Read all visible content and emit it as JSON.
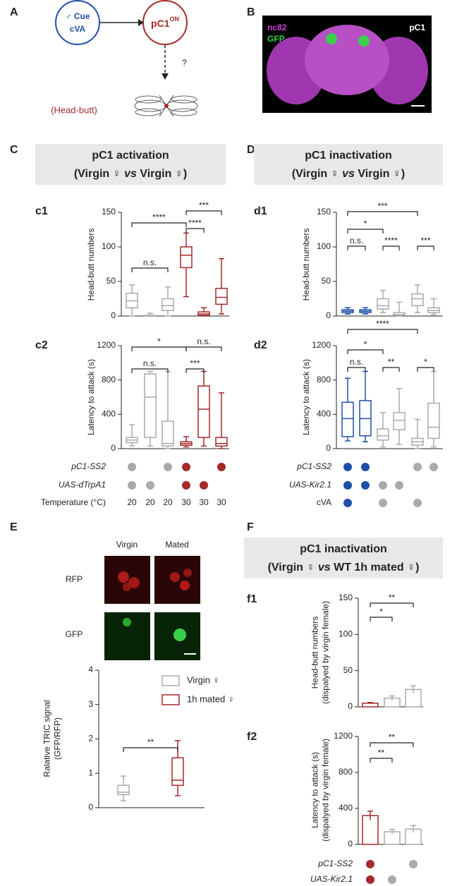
{
  "panel_labels": [
    "A",
    "B",
    "C",
    "D",
    "E",
    "F"
  ],
  "diagram": {
    "cue": [
      "♂ Cue",
      "cVA"
    ],
    "neuron": "pC1",
    "neuron_sup": "ON",
    "question": "?",
    "behavior": "(Head-butt)"
  },
  "image_b": {
    "labels": [
      "nc82",
      "GFP"
    ],
    "title": "pC1"
  },
  "headers": [
    {
      "line1": "pC1 activation",
      "line2": [
        "(Virgin ♀ ",
        "vs",
        " Virgin ♀)"
      ]
    },
    {
      "line1": "pC1 inactivation",
      "line2": [
        "(Virgin ♀ ",
        "vs",
        " Virgin ♀)"
      ]
    },
    {
      "line1": "pC1 inactivation",
      "line2": [
        "(Virgin ♀ ",
        "vs",
        " WT 1h mated ♀)"
      ]
    }
  ],
  "image_e": {
    "columns": [
      "Virgin",
      "Mated"
    ],
    "rows": [
      "RFP",
      "GFP"
    ]
  },
  "chart_data": [
    {
      "type": "box",
      "panel": "c1",
      "ylabel": [
        "Head-butt numbers"
      ],
      "ylim": [
        0,
        150
      ],
      "yticks": [
        0,
        50,
        100,
        150
      ],
      "groups": [
        {
          "color": "#aaaaaa",
          "min": 0,
          "q1": 12,
          "median": 22,
          "q3": 33,
          "max": 45
        },
        {
          "color": "#aaaaaa",
          "min": 0,
          "q1": 0,
          "median": 0,
          "q3": 1,
          "max": 4
        },
        {
          "color": "#aaaaaa",
          "min": 0,
          "q1": 8,
          "median": 15,
          "q3": 25,
          "max": 42
        },
        {
          "color": "#a52a2a",
          "min": 28,
          "q1": 70,
          "median": 88,
          "q3": 100,
          "max": 120
        },
        {
          "color": "#a52a2a",
          "min": 0,
          "q1": 1,
          "median": 3,
          "q3": 6,
          "max": 12
        },
        {
          "color": "#a52a2a",
          "min": 3,
          "q1": 17,
          "median": 27,
          "q3": 40,
          "max": 83
        }
      ],
      "significance": [
        {
          "text": "****",
          "from": 0,
          "to": 3
        },
        {
          "text": "n.s.",
          "from": 0,
          "to": 2
        },
        {
          "text": "****",
          "from": 3,
          "to": 4
        },
        {
          "text": "***",
          "from": 3,
          "to": 5
        }
      ]
    },
    {
      "type": "box",
      "panel": "c2",
      "ylabel": [
        "Latency to attack (s)"
      ],
      "ylim": [
        0,
        1200
      ],
      "yticks": [
        0,
        400,
        800,
        1200
      ],
      "groups": [
        {
          "color": "#aaaaaa",
          "min": 30,
          "q1": 70,
          "median": 100,
          "q3": 130,
          "max": 280
        },
        {
          "color": "#aaaaaa",
          "min": 30,
          "q1": 130,
          "median": 600,
          "q3": 870,
          "max": 900
        },
        {
          "color": "#aaaaaa",
          "min": 0,
          "q1": 30,
          "median": 60,
          "q3": 320,
          "max": 900
        },
        {
          "color": "#a52a2a",
          "min": 20,
          "q1": 40,
          "median": 60,
          "q3": 80,
          "max": 140
        },
        {
          "color": "#a52a2a",
          "min": 30,
          "q1": 130,
          "median": 460,
          "q3": 730,
          "max": 900
        },
        {
          "color": "#a52a2a",
          "min": 0,
          "q1": 30,
          "median": 60,
          "q3": 130,
          "max": 650
        }
      ],
      "significance": [
        {
          "text": "*",
          "from": 0,
          "to": 3
        },
        {
          "text": "n.s.",
          "from": 3,
          "to": 5
        },
        {
          "text": "n.s.",
          "from": 0,
          "to": 2
        },
        {
          "text": "***",
          "from": 3,
          "to": 4
        }
      ],
      "conditions": [
        {
          "label": "pC1-SS2",
          "italic": true,
          "present": [
            true,
            false,
            true,
            true,
            false,
            true
          ]
        },
        {
          "label": "UAS-dTrpA1",
          "italic": true,
          "present": [
            true,
            true,
            false,
            true,
            true,
            false
          ]
        }
      ],
      "temperature": {
        "label": "Temperature (°C)",
        "values": [
          20,
          20,
          20,
          30,
          30,
          30
        ]
      }
    },
    {
      "type": "box",
      "panel": "d1",
      "ylabel": [
        "Head-butt numbers"
      ],
      "ylim": [
        0,
        150
      ],
      "yticks": [
        0,
        50,
        100,
        150
      ],
      "groups": [
        {
          "color": "#1f4fa8",
          "min": 3,
          "q1": 5,
          "median": 7,
          "q3": 9,
          "max": 12
        },
        {
          "color": "#1f4fa8",
          "min": 3,
          "q1": 5,
          "median": 7,
          "q3": 9,
          "max": 12
        },
        {
          "color": "#aaaaaa",
          "min": 5,
          "q1": 10,
          "median": 15,
          "q3": 25,
          "max": 37
        },
        {
          "color": "#aaaaaa",
          "min": 0,
          "q1": 1,
          "median": 2,
          "q3": 5,
          "max": 20
        },
        {
          "color": "#aaaaaa",
          "min": 5,
          "q1": 15,
          "median": 25,
          "q3": 32,
          "max": 45
        },
        {
          "color": "#aaaaaa",
          "min": 2,
          "q1": 5,
          "median": 8,
          "q3": 12,
          "max": 25
        }
      ],
      "significance": [
        {
          "text": "***",
          "from": 0,
          "to": 4
        },
        {
          "text": "*",
          "from": 0,
          "to": 2
        },
        {
          "text": "n.s.",
          "from": 0,
          "to": 1
        },
        {
          "text": "****",
          "from": 2,
          "to": 3
        },
        {
          "text": "***",
          "from": 4,
          "to": 5
        }
      ]
    },
    {
      "type": "box",
      "panel": "d2",
      "ylabel": [
        "Latency to attack (s)"
      ],
      "ylim": [
        0,
        1200
      ],
      "yticks": [
        0,
        400,
        800,
        1200
      ],
      "groups": [
        {
          "color": "#1f4fa8",
          "min": 90,
          "q1": 140,
          "median": 350,
          "q3": 540,
          "max": 820
        },
        {
          "color": "#1f4fa8",
          "min": 80,
          "q1": 150,
          "median": 350,
          "q3": 560,
          "max": 900
        },
        {
          "color": "#aaaaaa",
          "min": 20,
          "q1": 100,
          "median": 150,
          "q3": 230,
          "max": 420
        },
        {
          "color": "#aaaaaa",
          "min": 50,
          "q1": 220,
          "median": 330,
          "q3": 420,
          "max": 700
        },
        {
          "color": "#aaaaaa",
          "min": 0,
          "q1": 40,
          "median": 80,
          "q3": 120,
          "max": 340
        },
        {
          "color": "#aaaaaa",
          "min": 20,
          "q1": 120,
          "median": 250,
          "q3": 530,
          "max": 900
        }
      ],
      "significance": [
        {
          "text": "****",
          "from": 0,
          "to": 4
        },
        {
          "text": "*",
          "from": 0,
          "to": 2
        },
        {
          "text": "n.s.",
          "from": 0,
          "to": 1
        },
        {
          "text": "**",
          "from": 2,
          "to": 3
        },
        {
          "text": "*",
          "from": 4,
          "to": 5
        }
      ],
      "conditions": [
        {
          "label": "pC1-SS2",
          "italic": true,
          "present": [
            true,
            true,
            false,
            false,
            true,
            true
          ]
        },
        {
          "label": "UAS-Kir2.1",
          "italic": true,
          "present": [
            true,
            true,
            true,
            true,
            false,
            false
          ]
        },
        {
          "label": "cVA",
          "italic": false,
          "present": [
            true,
            false,
            true,
            false,
            true,
            false
          ]
        }
      ]
    },
    {
      "type": "box",
      "panel": "e",
      "ylabel": [
        "Ralative TRIC signal",
        "(GFP/RFP)"
      ],
      "ylim": [
        0,
        4
      ],
      "yticks": [
        0,
        1,
        2,
        3,
        4
      ],
      "groups": [
        {
          "name": "Virgin ♀",
          "color": "#aaaaaa",
          "min": 0.2,
          "q1": 0.38,
          "median": 0.45,
          "q3": 0.65,
          "max": 0.92
        },
        {
          "name": "1h mated ♀",
          "color": "#a52a2a",
          "min": 0.35,
          "q1": 0.65,
          "median": 0.8,
          "q3": 1.45,
          "max": 1.95
        }
      ],
      "significance": [
        {
          "text": "**",
          "from": 0,
          "to": 1
        }
      ]
    },
    {
      "type": "bar",
      "panel": "f1",
      "ylabel": [
        "Head-butt numbers",
        "(dispalyed by virgin female)"
      ],
      "ylim": [
        0,
        150
      ],
      "yticks": [
        0,
        50,
        100,
        150
      ],
      "values": [
        5,
        12,
        24
      ],
      "errors": [
        1,
        3,
        5
      ],
      "colors": [
        "#a52a2a",
        "#aaaaaa",
        "#aaaaaa"
      ],
      "significance": [
        {
          "text": "*",
          "from": 0,
          "to": 1
        },
        {
          "text": "**",
          "from": 0,
          "to": 2
        }
      ]
    },
    {
      "type": "bar",
      "panel": "f2",
      "ylabel": [
        "Latency to attack (s)",
        "(dispalyed by virgin female)"
      ],
      "ylim": [
        0,
        1200
      ],
      "yticks": [
        0,
        400,
        800,
        1200
      ],
      "values": [
        320,
        140,
        170
      ],
      "errors": [
        50,
        25,
        40
      ],
      "colors": [
        "#a52a2a",
        "#aaaaaa",
        "#aaaaaa"
      ],
      "significance": [
        {
          "text": "**",
          "from": 0,
          "to": 1
        },
        {
          "text": "**",
          "from": 0,
          "to": 2
        }
      ],
      "conditions": [
        {
          "label": "pC1-SS2",
          "italic": true,
          "present": [
            true,
            false,
            true
          ]
        },
        {
          "label": "UAS-Kir2.1",
          "italic": true,
          "present": [
            true,
            true,
            false
          ]
        }
      ]
    }
  ]
}
